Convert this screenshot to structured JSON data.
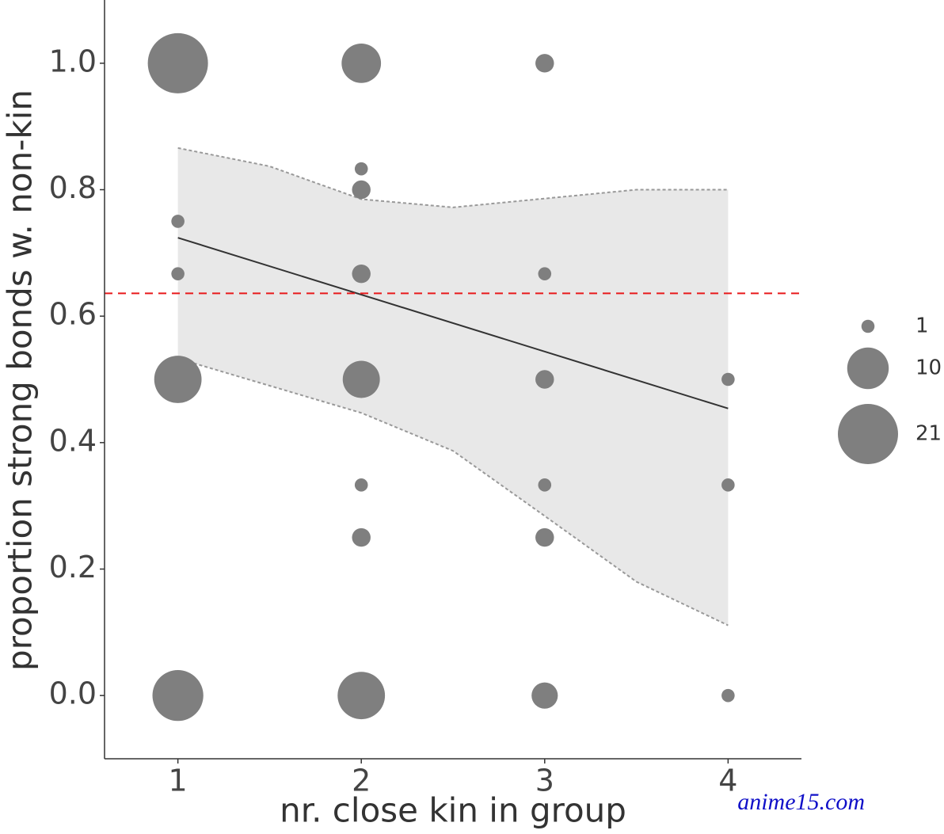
{
  "chart_data": {
    "type": "scatter",
    "xlabel": "nr. close kin in group",
    "ylabel": "proportion strong bonds w. non-kin",
    "xlim": [
      0.6,
      4.4
    ],
    "ylim": [
      -0.1,
      1.1
    ],
    "xticks": [
      1,
      2,
      3,
      4
    ],
    "yticks": [
      {
        "value": 0,
        "label": "0.0"
      },
      0.2,
      0.4,
      0.6,
      0.8,
      {
        "value": 1,
        "label": "1.0"
      }
    ],
    "grid": false,
    "points": {
      "color": "#7f7f7f",
      "x": [
        1,
        1,
        1,
        1,
        1,
        2,
        2,
        2,
        2,
        2,
        2,
        2,
        2,
        3,
        3,
        3,
        3,
        3,
        3,
        4,
        4,
        4
      ],
      "y": [
        1,
        0.75,
        0.667,
        0.5,
        0,
        1,
        0.833,
        0.8,
        0.667,
        0.5,
        0.333,
        0.25,
        0,
        1,
        0.667,
        0.5,
        0.333,
        0.25,
        0,
        0.5,
        0.333,
        0
      ],
      "size": [
        21,
        1,
        1,
        13,
        15,
        9,
        1,
        2,
        2,
        8,
        1,
        2,
        13,
        2,
        1,
        2,
        1,
        2,
        4,
        1,
        1,
        1
      ]
    },
    "fit": {
      "color": "#333333",
      "x": [
        1,
        4
      ],
      "y": [
        0.724,
        0.454
      ]
    },
    "band": {
      "fill": "#e8e8e8",
      "x": [
        1,
        1.5,
        2,
        2.5,
        3,
        3.5,
        4
      ],
      "upper": [
        0.866,
        0.837,
        0.785,
        0.772,
        0.786,
        0.8,
        0.8
      ],
      "lower": [
        0.533,
        0.49,
        0.447,
        0.387,
        0.284,
        0.18,
        0.111
      ]
    },
    "hline": {
      "value": 0.636,
      "color": "#e8191b"
    },
    "size_legend": {
      "position": "right",
      "values": [
        1,
        10,
        21
      ]
    },
    "watermark": "anime15.com"
  }
}
